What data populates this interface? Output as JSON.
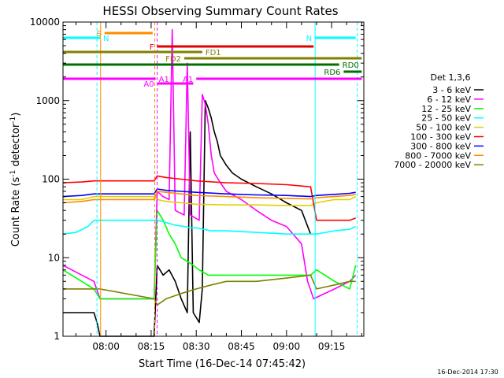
{
  "chart_data": {
    "type": "line",
    "title": "HESSI Observing Summary Count Rates",
    "xlabel": "Start Time (16-Dec-14 07:45:42)",
    "ylabel": "Count Rate (s",
    "ylabel_sup1": "-1",
    "ylabel_mid": " detector",
    "ylabel_sup2": "-1",
    "ylabel_end": ")",
    "yscale": "log",
    "ylim": [
      1,
      10000
    ],
    "xlim_minutes": [
      465.7,
      565.7
    ],
    "x_ticks": [
      {
        "t": 480,
        "label": "08:00"
      },
      {
        "t": 495,
        "label": "08:15"
      },
      {
        "t": 510,
        "label": "08:30"
      },
      {
        "t": 525,
        "label": "08:45"
      },
      {
        "t": 540,
        "label": "09:00"
      },
      {
        "t": 555,
        "label": "09:15"
      }
    ],
    "y_ticks": [
      {
        "v": 1,
        "label": "1"
      },
      {
        "v": 10,
        "label": "10"
      },
      {
        "v": 100,
        "label": "100"
      },
      {
        "v": 1000,
        "label": "1000"
      },
      {
        "v": 10000,
        "label": "10000"
      }
    ],
    "legend_title": "Det 1,3,6",
    "legend_position": "right",
    "series": [
      {
        "name": "3 - 6 keV",
        "color": "#000000",
        "points": [
          [
            465.7,
            2
          ],
          [
            476,
            2
          ],
          [
            477,
            1.5
          ],
          [
            478,
            1
          ],
          [
            496,
            1
          ],
          [
            497,
            8
          ],
          [
            499,
            6
          ],
          [
            501,
            7
          ],
          [
            503,
            5
          ],
          [
            505,
            3
          ],
          [
            507,
            2
          ],
          [
            508,
            400
          ],
          [
            509,
            2
          ],
          [
            511,
            1.5
          ],
          [
            512,
            4
          ],
          [
            513,
            1000
          ],
          [
            514,
            800
          ],
          [
            515,
            600
          ],
          [
            516,
            400
          ],
          [
            517,
            300
          ],
          [
            518,
            200
          ],
          [
            520,
            150
          ],
          [
            522,
            120
          ],
          [
            525,
            100
          ],
          [
            530,
            80
          ],
          [
            535,
            65
          ],
          [
            540,
            50
          ],
          [
            545,
            40
          ],
          [
            548,
            20
          ]
        ]
      },
      {
        "name": "6 - 12 keV",
        "color": "#ff00ff",
        "points": [
          [
            465.7,
            8
          ],
          [
            476,
            5
          ],
          [
            478,
            3
          ],
          [
            496,
            3
          ],
          [
            497,
            70
          ],
          [
            499,
            60
          ],
          [
            501,
            55
          ],
          [
            502,
            8000
          ],
          [
            503,
            40
          ],
          [
            506,
            35
          ],
          [
            507,
            3000
          ],
          [
            508,
            35
          ],
          [
            511,
            30
          ],
          [
            512,
            1200
          ],
          [
            513,
            900
          ],
          [
            514,
            500
          ],
          [
            515,
            200
          ],
          [
            516,
            120
          ],
          [
            518,
            90
          ],
          [
            520,
            70
          ],
          [
            525,
            55
          ],
          [
            530,
            40
          ],
          [
            535,
            30
          ],
          [
            540,
            25
          ],
          [
            545,
            15
          ],
          [
            547,
            5
          ],
          [
            549,
            3
          ],
          [
            556,
            4
          ],
          [
            561,
            5
          ],
          [
            563,
            6
          ]
        ]
      },
      {
        "name": "12 - 25 keV",
        "color": "#00ff00",
        "points": [
          [
            465.7,
            7
          ],
          [
            476,
            4
          ],
          [
            478,
            3
          ],
          [
            496,
            3
          ],
          [
            497,
            40
          ],
          [
            499,
            30
          ],
          [
            501,
            20
          ],
          [
            503,
            15
          ],
          [
            505,
            10
          ],
          [
            507,
            9
          ],
          [
            509,
            8
          ],
          [
            511,
            7
          ],
          [
            514,
            6
          ],
          [
            520,
            6
          ],
          [
            530,
            6
          ],
          [
            540,
            6
          ],
          [
            548,
            6
          ],
          [
            550,
            7
          ],
          [
            556,
            5
          ],
          [
            561,
            4
          ],
          [
            563,
            8
          ]
        ]
      },
      {
        "name": "25 - 50 keV",
        "color": "#00ffff",
        "points": [
          [
            465.7,
            20
          ],
          [
            470,
            21
          ],
          [
            474,
            25
          ],
          [
            476,
            30
          ],
          [
            478,
            30
          ],
          [
            496,
            30
          ],
          [
            497,
            30
          ],
          [
            500,
            28
          ],
          [
            503,
            26
          ],
          [
            506,
            25
          ],
          [
            508,
            24
          ],
          [
            510,
            24
          ],
          [
            515,
            22
          ],
          [
            520,
            22
          ],
          [
            530,
            21
          ],
          [
            540,
            20
          ],
          [
            548,
            20
          ],
          [
            550,
            20
          ],
          [
            556,
            22
          ],
          [
            561,
            23
          ],
          [
            563,
            25
          ]
        ]
      },
      {
        "name": "50 - 100 keV",
        "color": "#e0d000",
        "points": [
          [
            465.7,
            55
          ],
          [
            472,
            55
          ],
          [
            476,
            60
          ],
          [
            478,
            60
          ],
          [
            496,
            60
          ],
          [
            497,
            55
          ],
          [
            500,
            52
          ],
          [
            505,
            50
          ],
          [
            510,
            48
          ],
          [
            520,
            47
          ],
          [
            530,
            47
          ],
          [
            540,
            46
          ],
          [
            548,
            46
          ],
          [
            550,
            50
          ],
          [
            556,
            55
          ],
          [
            561,
            55
          ],
          [
            563,
            60
          ]
        ]
      },
      {
        "name": "100 - 300 keV",
        "color": "#ff0000",
        "points": [
          [
            465.7,
            90
          ],
          [
            472,
            92
          ],
          [
            476,
            95
          ],
          [
            478,
            95
          ],
          [
            496,
            95
          ],
          [
            497,
            110
          ],
          [
            500,
            105
          ],
          [
            505,
            100
          ],
          [
            510,
            95
          ],
          [
            520,
            90
          ],
          [
            530,
            88
          ],
          [
            540,
            85
          ],
          [
            548,
            80
          ],
          [
            550,
            30
          ],
          [
            556,
            30
          ],
          [
            561,
            30
          ],
          [
            563,
            32
          ]
        ]
      },
      {
        "name": "300 - 800 keV",
        "color": "#0000ff",
        "points": [
          [
            465.7,
            60
          ],
          [
            472,
            62
          ],
          [
            476,
            65
          ],
          [
            478,
            65
          ],
          [
            496,
            65
          ],
          [
            497,
            75
          ],
          [
            500,
            72
          ],
          [
            505,
            70
          ],
          [
            510,
            68
          ],
          [
            520,
            65
          ],
          [
            530,
            63
          ],
          [
            540,
            62
          ],
          [
            548,
            60
          ],
          [
            550,
            62
          ],
          [
            556,
            64
          ],
          [
            561,
            66
          ],
          [
            563,
            68
          ]
        ]
      },
      {
        "name": "800 - 7000 keV",
        "color": "#ff8c00",
        "points": [
          [
            465.7,
            50
          ],
          [
            472,
            52
          ],
          [
            476,
            55
          ],
          [
            478,
            55
          ],
          [
            496,
            55
          ],
          [
            497,
            70
          ],
          [
            500,
            68
          ],
          [
            505,
            65
          ],
          [
            510,
            62
          ],
          [
            520,
            60
          ],
          [
            530,
            58
          ],
          [
            540,
            57
          ],
          [
            548,
            56
          ],
          [
            550,
            58
          ],
          [
            556,
            60
          ],
          [
            561,
            62
          ],
          [
            563,
            64
          ]
        ]
      },
      {
        "name": "7000 - 20000 keV",
        "color": "#808000",
        "points": [
          [
            465.7,
            4
          ],
          [
            476,
            4
          ],
          [
            478,
            4
          ],
          [
            496,
            3
          ],
          [
            497,
            2.5
          ],
          [
            500,
            3
          ],
          [
            505,
            3.5
          ],
          [
            510,
            4
          ],
          [
            515,
            4.5
          ],
          [
            520,
            5
          ],
          [
            530,
            5
          ],
          [
            540,
            5.5
          ],
          [
            548,
            6
          ],
          [
            550,
            4
          ],
          [
            556,
            4.5
          ],
          [
            561,
            5
          ],
          [
            563,
            5
          ]
        ]
      }
    ],
    "flag_bars": [
      {
        "label": "S",
        "color": "#ff8c00",
        "t0": 479.5,
        "t1": 495.5,
        "y": 42
      },
      {
        "label": "N",
        "color": "#00ffff",
        "t0": 465.7,
        "t1": 478,
        "y": 48
      },
      {
        "label": "N",
        "color": "#00ffff",
        "t0": 549.5,
        "t1": 563,
        "y": 48
      },
      {
        "label": "F",
        "color": "#e00000",
        "t0": 497,
        "t1": 549,
        "y": 59
      },
      {
        "label": "FD1",
        "color": "#808000",
        "t0": 465.7,
        "t1": 512,
        "y": 66
      },
      {
        "label": "FD2",
        "color": "#808000",
        "t0": 506,
        "t1": 565,
        "y": 74
      },
      {
        "label": "RD0",
        "color": "#007000",
        "t0": 465.7,
        "t1": 557.5,
        "y": 82
      },
      {
        "label": "RD6",
        "color": "#007000",
        "t0": 559,
        "t1": 565,
        "y": 91
      },
      {
        "label": "A0",
        "color": "#ff00ff",
        "t0": 497,
        "t1": 509,
        "y": 106
      },
      {
        "label": "A1",
        "color": "#ff00ff",
        "t0": 465.7,
        "t1": 496.5,
        "y": 100
      },
      {
        "label": "A1",
        "color": "#ff00ff",
        "t0": 510,
        "t1": 565,
        "y": 100
      }
    ],
    "vlines": [
      {
        "t": 477,
        "color": "#00ffff",
        "dash": true
      },
      {
        "t": 478.2,
        "color": "#ff8c00",
        "dash": false
      },
      {
        "t": 496.2,
        "color": "#ff8c00",
        "dash": true
      },
      {
        "t": 497,
        "color": "#ff00ff",
        "dash": true
      },
      {
        "t": 549.5,
        "color": "#00ffff",
        "dash": false
      },
      {
        "t": 563.5,
        "color": "#00ffff",
        "dash": true
      }
    ],
    "footer": "16-Dec-2014 17:30"
  }
}
